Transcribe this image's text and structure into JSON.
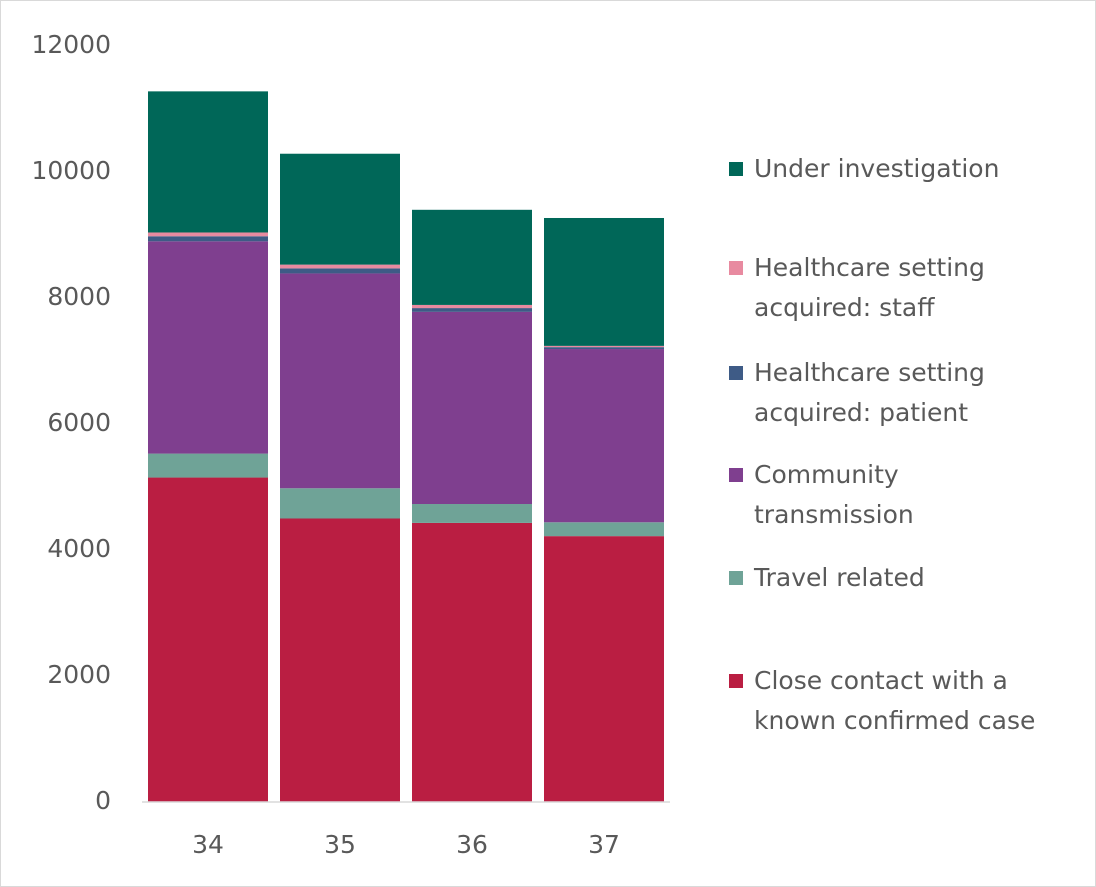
{
  "chart_data": {
    "type": "stacked_bar",
    "categories": [
      "34",
      "35",
      "36",
      "37"
    ],
    "series": [
      {
        "name": "Close contact with a known confirmed case",
        "color": "#BA1E42",
        "values": [
          5150,
          4500,
          4430,
          4220
        ]
      },
      {
        "name": "Travel related",
        "color": "#6FA397",
        "values": [
          380,
          480,
          300,
          220
        ]
      },
      {
        "name": "Community transmission",
        "color": "#7F3F8F",
        "values": [
          3370,
          3410,
          3050,
          2750
        ]
      },
      {
        "name": "Healthcare setting acquired: patient",
        "color": "#3E5B86",
        "values": [
          80,
          80,
          60,
          30
        ]
      },
      {
        "name": "Healthcare setting acquired: staff",
        "color": "#E88AA0",
        "values": [
          60,
          60,
          50,
          20
        ]
      },
      {
        "name": "Under investigation",
        "color": "#006758",
        "values": [
          2240,
          1760,
          1510,
          2030
        ]
      }
    ],
    "ylim": [
      0,
      12000
    ],
    "yticks": [
      0,
      2000,
      4000,
      6000,
      8000,
      10000,
      12000
    ],
    "grid": false,
    "legend": "right"
  }
}
